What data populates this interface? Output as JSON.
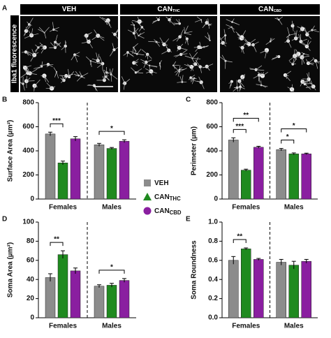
{
  "panel_a": {
    "letter": "A",
    "side_label": "Iba1 fluorescence",
    "columns": [
      {
        "text": "VEH"
      },
      {
        "text": "CAN",
        "sub": "THC"
      },
      {
        "text": "CAN",
        "sub": "CBD"
      }
    ]
  },
  "legend": [
    {
      "name": "VEH",
      "color": "#8c8c8c",
      "marker": "square"
    },
    {
      "name": "CAN",
      "sub": "THC",
      "color": "#1f8a1f",
      "marker": "triangle"
    },
    {
      "name": "CAN",
      "sub": "CBD",
      "color": "#8a1fa0",
      "marker": "circle"
    }
  ],
  "chart_data": [
    {
      "type": "bar",
      "letter": "B",
      "ylabel": "Surface Area (µm²)",
      "categories": [
        "Females",
        "Males"
      ],
      "ylim": [
        0,
        800
      ],
      "yticks": [
        0,
        200,
        400,
        600,
        800
      ],
      "series": [
        {
          "values": [
            540,
            450
          ],
          "errors": [
            15,
            12
          ]
        },
        {
          "values": [
            300,
            420
          ],
          "errors": [
            15,
            8
          ]
        },
        {
          "values": [
            500,
            480
          ],
          "errors": [
            18,
            12
          ]
        }
      ],
      "annotations": [
        {
          "label": "***",
          "category": 0,
          "between": [
            0,
            1
          ]
        },
        {
          "label": "*",
          "category": 1,
          "between": [
            0,
            2
          ]
        }
      ]
    },
    {
      "type": "bar",
      "letter": "C",
      "ylabel": "Perimeter (µm)",
      "categories": [
        "Females",
        "Males"
      ],
      "ylim": [
        0,
        800
      ],
      "yticks": [
        0,
        200,
        400,
        600,
        800
      ],
      "series": [
        {
          "values": [
            490,
            410
          ],
          "errors": [
            18,
            10
          ]
        },
        {
          "values": [
            240,
            375
          ],
          "errors": [
            8,
            8
          ]
        },
        {
          "values": [
            430,
            375
          ],
          "errors": [
            8,
            6
          ]
        }
      ],
      "annotations": [
        {
          "label": "***",
          "category": 0,
          "between": [
            0,
            1
          ]
        },
        {
          "label": "**",
          "category": 0,
          "between": [
            0,
            2
          ]
        },
        {
          "label": "*",
          "category": 1,
          "between": [
            0,
            1
          ]
        },
        {
          "label": "*",
          "category": 1,
          "between": [
            0,
            2
          ]
        }
      ]
    },
    {
      "type": "bar",
      "letter": "D",
      "ylabel": "Soma Area (µm²)",
      "categories": [
        "Females",
        "Males"
      ],
      "ylim": [
        0,
        100
      ],
      "yticks": [
        0,
        20,
        40,
        60,
        80,
        100
      ],
      "series": [
        {
          "values": [
            42,
            33
          ],
          "errors": [
            4,
            1.5
          ]
        },
        {
          "values": [
            66,
            34
          ],
          "errors": [
            4,
            2
          ]
        },
        {
          "values": [
            49,
            39
          ],
          "errors": [
            3,
            2
          ]
        }
      ],
      "annotations": [
        {
          "label": "**",
          "category": 0,
          "between": [
            0,
            1
          ]
        },
        {
          "label": "*",
          "category": 1,
          "between": [
            0,
            2
          ]
        }
      ]
    },
    {
      "type": "bar",
      "letter": "E",
      "ylabel": "Soma Roundness",
      "categories": [
        "Females",
        "Males"
      ],
      "ylim": [
        0,
        1
      ],
      "yticks": [
        {
          "value": 0,
          "label": "0.0"
        },
        0.2,
        0.4,
        0.6,
        0.8,
        {
          "value": 1,
          "label": "1.0"
        }
      ],
      "series": [
        {
          "values": [
            0.6,
            0.58
          ],
          "errors": [
            0.04,
            0.03
          ]
        },
        {
          "values": [
            0.72,
            0.55
          ],
          "errors": [
            0.01,
            0.04
          ]
        },
        {
          "values": [
            0.61,
            0.59
          ],
          "errors": [
            0.01,
            0.02
          ]
        }
      ],
      "annotations": [
        {
          "label": "**",
          "category": 0,
          "between": [
            0,
            1
          ]
        }
      ]
    }
  ]
}
